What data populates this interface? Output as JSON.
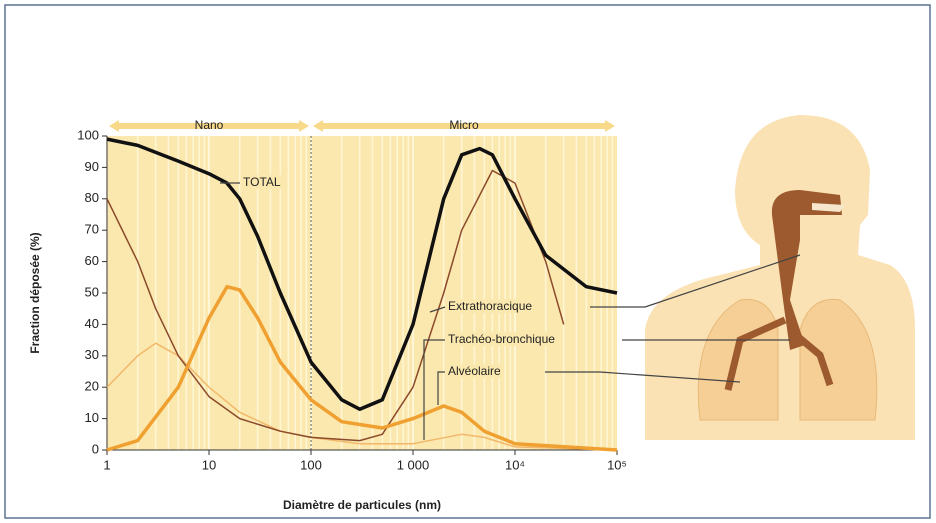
{
  "chart_data": {
    "type": "line",
    "xlabel": "Diamètre de particules (nm)",
    "ylabel": "Fraction déposée (%)",
    "annotations": [
      "Nano",
      "Micro"
    ],
    "xlog": true,
    "xlim": [
      1,
      100000
    ],
    "ylim": [
      0,
      100
    ],
    "xticks": [
      1,
      10,
      100,
      {
        "value": 1000,
        "label": "1 000"
      },
      {
        "value": 10000,
        "label": "10⁴"
      },
      {
        "value": 100000,
        "label": "10⁵"
      }
    ],
    "yticks": [
      0,
      10,
      20,
      30,
      40,
      50,
      60,
      70,
      80,
      90,
      100
    ],
    "series": [
      {
        "name": "TOTAL",
        "color": "#111111",
        "x": [
          1,
          2,
          5,
          10,
          15,
          20,
          30,
          50,
          100,
          200,
          300,
          500,
          1000,
          2000,
          3000,
          4500,
          6000,
          10000,
          20000,
          50000,
          100000
        ],
        "values": [
          99,
          97,
          92,
          88,
          85,
          80,
          68,
          50,
          28,
          16,
          13,
          16,
          40,
          80,
          94,
          96,
          94,
          80,
          62,
          52,
          50
        ]
      },
      {
        "name": "Extrathoracique",
        "color": "#8b4a2b",
        "x": [
          1,
          2,
          3,
          5,
          10,
          20,
          50,
          100,
          300,
          500,
          1000,
          2000,
          3000,
          6000,
          10000,
          20000,
          30000
        ],
        "values": [
          80,
          60,
          45,
          30,
          17,
          10,
          6,
          4,
          3,
          5,
          20,
          50,
          70,
          89,
          85,
          60,
          40
        ]
      },
      {
        "name": "Trachéo-bronchique",
        "color": "#f2b86a",
        "x": [
          1,
          2,
          3,
          5,
          10,
          20,
          50,
          100,
          300,
          1000,
          3000,
          5000,
          10000,
          100000
        ],
        "values": [
          20,
          30,
          34,
          30,
          20,
          12,
          6,
          4,
          2,
          2,
          5,
          4,
          1,
          0
        ]
      },
      {
        "name": "Alvéolaire",
        "color": "#f0a030",
        "x": [
          1,
          2,
          5,
          10,
          15,
          20,
          30,
          50,
          100,
          200,
          500,
          1000,
          2000,
          3000,
          5000,
          10000,
          100000
        ],
        "values": [
          0,
          3,
          20,
          42,
          52,
          51,
          42,
          28,
          16,
          9,
          7,
          10,
          14,
          12,
          6,
          2,
          0
        ]
      }
    ]
  }
}
